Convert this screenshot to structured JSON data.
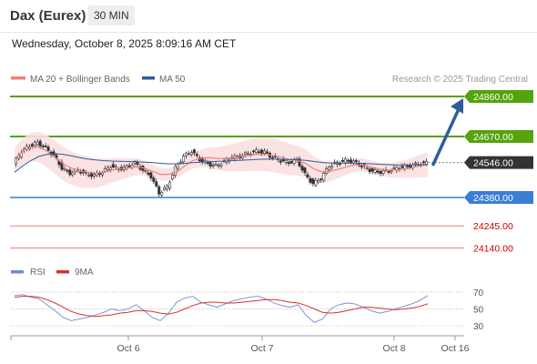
{
  "header": {
    "instrument": "Dax (Eurex)",
    "timeframe": "30 MIN",
    "datetime": "Wednesday, October 8, 2025 8:09:16 AM CET"
  },
  "legend": {
    "ma20_label": "MA 20 + Bollinger Bands",
    "ma50_label": "MA 50",
    "copyright": "Research © 2025 Trading Central",
    "rsi_label": "RSI",
    "rsi_ma_label": "9MA"
  },
  "colors": {
    "resistance": "#55a30d",
    "support": "#3b7fd4",
    "current": "#333333",
    "red_level": "#f08080",
    "ma20": "#f08080",
    "ma50": "#2f5d9c",
    "arrow": "#2f5d9c",
    "candle_up": "#ffffff",
    "candle_down": "#333333",
    "bollinger": "#fbe0e0",
    "rsi": "#6b8fd6",
    "rsi_ma": "#d83030"
  },
  "levels": [
    {
      "label": "24860.00",
      "value": 24860,
      "kind": "resistance"
    },
    {
      "label": "24670.00",
      "value": 24670,
      "kind": "resistance"
    },
    {
      "label": "24546.00",
      "value": 24546,
      "kind": "current"
    },
    {
      "label": "24380.00",
      "value": 24380,
      "kind": "support"
    },
    {
      "label": "24245.00",
      "value": 24245,
      "kind": "minor"
    },
    {
      "label": "24140.00",
      "value": 24140,
      "kind": "minor"
    }
  ],
  "x_axis": {
    "labels": [
      "Oct 6",
      "Oct 7",
      "Oct 8",
      "Oct 16"
    ]
  },
  "rsi_axis": {
    "levels": [
      70,
      50,
      30
    ]
  },
  "chart_data": {
    "type": "candlestick",
    "price_series": [
      24540,
      24600,
      24625,
      24640,
      24615,
      24580,
      24520,
      24495,
      24510,
      24490,
      24485,
      24500,
      24530,
      24515,
      24525,
      24545,
      24510,
      24480,
      24400,
      24430,
      24520,
      24575,
      24600,
      24560,
      24540,
      24530,
      24550,
      24570,
      24575,
      24590,
      24600,
      24595,
      24570,
      24555,
      24545,
      24560,
      24490,
      24445,
      24470,
      24530,
      24545,
      24555,
      24550,
      24530,
      24510,
      24500,
      24505,
      24515,
      24525,
      24530,
      24540,
      24546
    ],
    "ma20_series": [
      24560,
      24600,
      24620,
      24620,
      24600,
      24570,
      24540,
      24520,
      24505,
      24500,
      24495,
      24500,
      24510,
      24515,
      24520,
      24525,
      24520,
      24505,
      24490,
      24490,
      24500,
      24530,
      24555,
      24565,
      24570,
      24565,
      24565,
      24570,
      24575,
      24580,
      24585,
      24585,
      24580,
      24570,
      24560,
      24555,
      24540,
      24515,
      24500,
      24505,
      24515,
      24525,
      24535,
      24535,
      24525,
      24515,
      24510,
      24510,
      24515,
      24520,
      24530,
      24535
    ],
    "ma50_series": [
      24500,
      24530,
      24555,
      24575,
      24585,
      24588,
      24585,
      24578,
      24570,
      24563,
      24558,
      24555,
      24553,
      24552,
      24551,
      24550,
      24548,
      24546,
      24542,
      24540,
      24540,
      24542,
      24545,
      24548,
      24550,
      24552,
      24553,
      24555,
      24557,
      24559,
      24561,
      24562,
      24562,
      24561,
      24560,
      24559,
      24556,
      24551,
      24546,
      24544,
      24543,
      24543,
      24543,
      24542,
      24540,
      24538,
      24536,
      24535,
      24535,
      24535,
      24536,
      24537
    ],
    "rsi_series": [
      66,
      67,
      64,
      62,
      55,
      48,
      40,
      36,
      38,
      40,
      43,
      46,
      50,
      48,
      50,
      55,
      48,
      40,
      36,
      45,
      58,
      63,
      65,
      58,
      55,
      52,
      56,
      60,
      62,
      64,
      65,
      62,
      57,
      54,
      52,
      55,
      42,
      34,
      38,
      50,
      55,
      57,
      56,
      52,
      48,
      45,
      47,
      50,
      53,
      56,
      60,
      66
    ],
    "rsi_ma_series": [
      64,
      65,
      65,
      64,
      61,
      57,
      52,
      47,
      44,
      42,
      41,
      42,
      43,
      45,
      46,
      48,
      48,
      47,
      45,
      44,
      46,
      50,
      54,
      57,
      58,
      58,
      57,
      57,
      58,
      59,
      60,
      61,
      61,
      60,
      58,
      57,
      54,
      50,
      46,
      45,
      46,
      48,
      50,
      52,
      52,
      51,
      50,
      49,
      50,
      51,
      53,
      56
    ],
    "projection": {
      "from": 24546,
      "to": 24860
    }
  }
}
